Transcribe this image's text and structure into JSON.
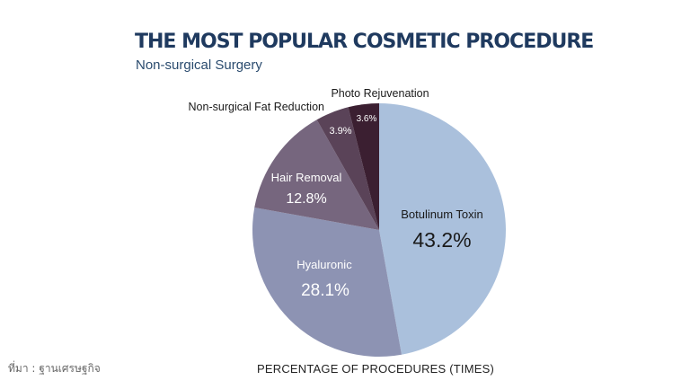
{
  "title": "THE MOST POPULAR COSMETIC PROCEDURE",
  "subtitle": "Non-surgical Surgery",
  "source": "ที่มา : ฐานเศรษฐกิจ",
  "chart_data": {
    "type": "pie",
    "title": "THE MOST POPULAR COSMETIC PROCEDURE",
    "subtitle": "Non-surgical Surgery",
    "xlabel": "PERCENTAGE OF PROCEDURES  (TIMES)",
    "legend": "none",
    "slices": [
      {
        "name": "Botulinum Toxin",
        "value": 43.2,
        "label": "43.2%",
        "color": "#aac0dc"
      },
      {
        "name": "Hyaluronic",
        "value": 28.1,
        "label": "28.1%",
        "color": "#8d93b3"
      },
      {
        "name": "Hair Removal",
        "value": 12.8,
        "label": "12.8%",
        "color": "#76667e"
      },
      {
        "name": "Non-surgical Fat Reduction",
        "value": 3.9,
        "label": "3.9%",
        "color": "#5a4358"
      },
      {
        "name": "Photo Rejuvenation",
        "value": 3.6,
        "label": "3.6%",
        "color": "#3b1f31"
      }
    ]
  }
}
